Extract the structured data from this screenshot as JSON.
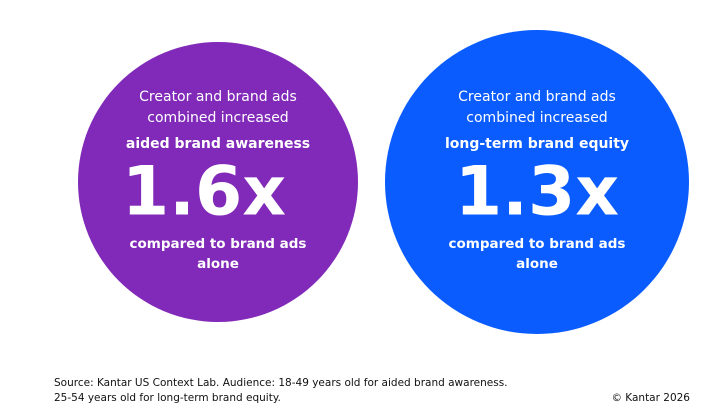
{
  "panels": [
    {
      "intro_lines": [
        "Creator and brand ads",
        "combined increased"
      ],
      "metric": "aided brand awareness",
      "value": "1.6x",
      "comparison_lines": [
        "compared to brand ads",
        "alone"
      ]
    },
    {
      "intro_lines": [
        "Creator and brand ads",
        "combined increased"
      ],
      "metric": "long-term brand equity",
      "value": "1.3x",
      "comparison_lines": [
        "compared to brand ads",
        "alone"
      ]
    }
  ],
  "footer": {
    "source_lines": [
      "Source: Kantar US Context Lab. Audience: 18-49 years old for aided brand awareness.",
      "25-54 years old for long-term brand equity."
    ],
    "copyright": "© Kantar 2026"
  }
}
